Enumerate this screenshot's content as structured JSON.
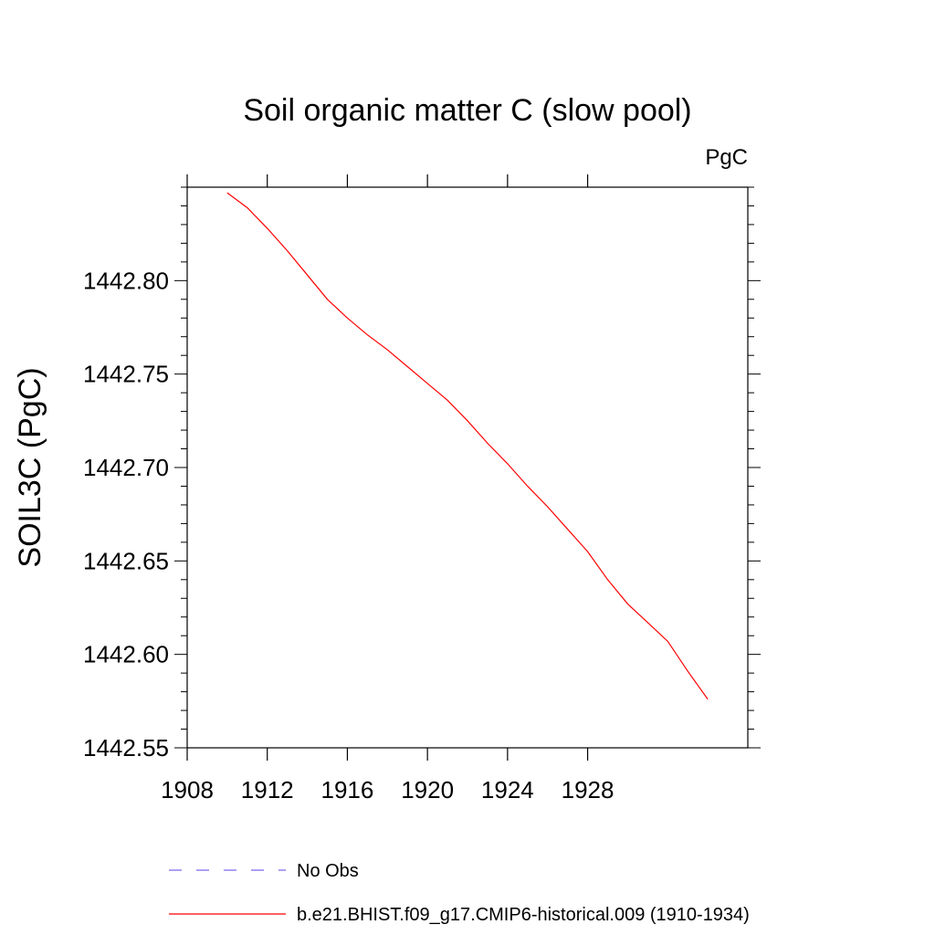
{
  "chart_data": {
    "type": "line",
    "title": "Soil organic matter C (slow pool)",
    "units_label": "PgC",
    "xlabel": "",
    "ylabel": "SOIL3C  (PgC)",
    "xlim": [
      1908,
      1936
    ],
    "ylim": [
      1442.55,
      1442.85
    ],
    "x_ticks": [
      1908,
      1912,
      1916,
      1920,
      1924,
      1928
    ],
    "x_tick_labels": [
      "1908",
      "1912",
      "1916",
      "1920",
      "1924",
      "1928"
    ],
    "y_ticks": [
      1442.55,
      1442.6,
      1442.65,
      1442.7,
      1442.75,
      1442.8
    ],
    "y_tick_labels": [
      "1442.55",
      "1442.60",
      "1442.65",
      "1442.70",
      "1442.75",
      "1442.80"
    ],
    "grid": false,
    "legend_position": "bottom",
    "series": [
      {
        "name": "b.e21.BHIST.f09_g17.CMIP6-historical.009 (1910-1934)",
        "color": "#ff0000",
        "style": "solid",
        "x": [
          1910,
          1911,
          1912,
          1913,
          1914,
          1915,
          1916,
          1917,
          1918,
          1919,
          1920,
          1921,
          1922,
          1923,
          1924,
          1925,
          1926,
          1927,
          1928,
          1929,
          1930,
          1931,
          1932,
          1933,
          1934
        ],
        "values": [
          1442.847,
          1442.839,
          1442.828,
          1442.816,
          1442.803,
          1442.79,
          1442.78,
          1442.771,
          1442.763,
          1442.754,
          1442.745,
          1442.736,
          1442.725,
          1442.713,
          1442.702,
          1442.69,
          1442.679,
          1442.667,
          1442.655,
          1442.64,
          1442.627,
          1442.617,
          1442.607,
          1442.591,
          1442.576
        ]
      },
      {
        "name": "No Obs",
        "color": "#7b68ee",
        "style": "dashed",
        "x": [],
        "values": []
      }
    ]
  }
}
